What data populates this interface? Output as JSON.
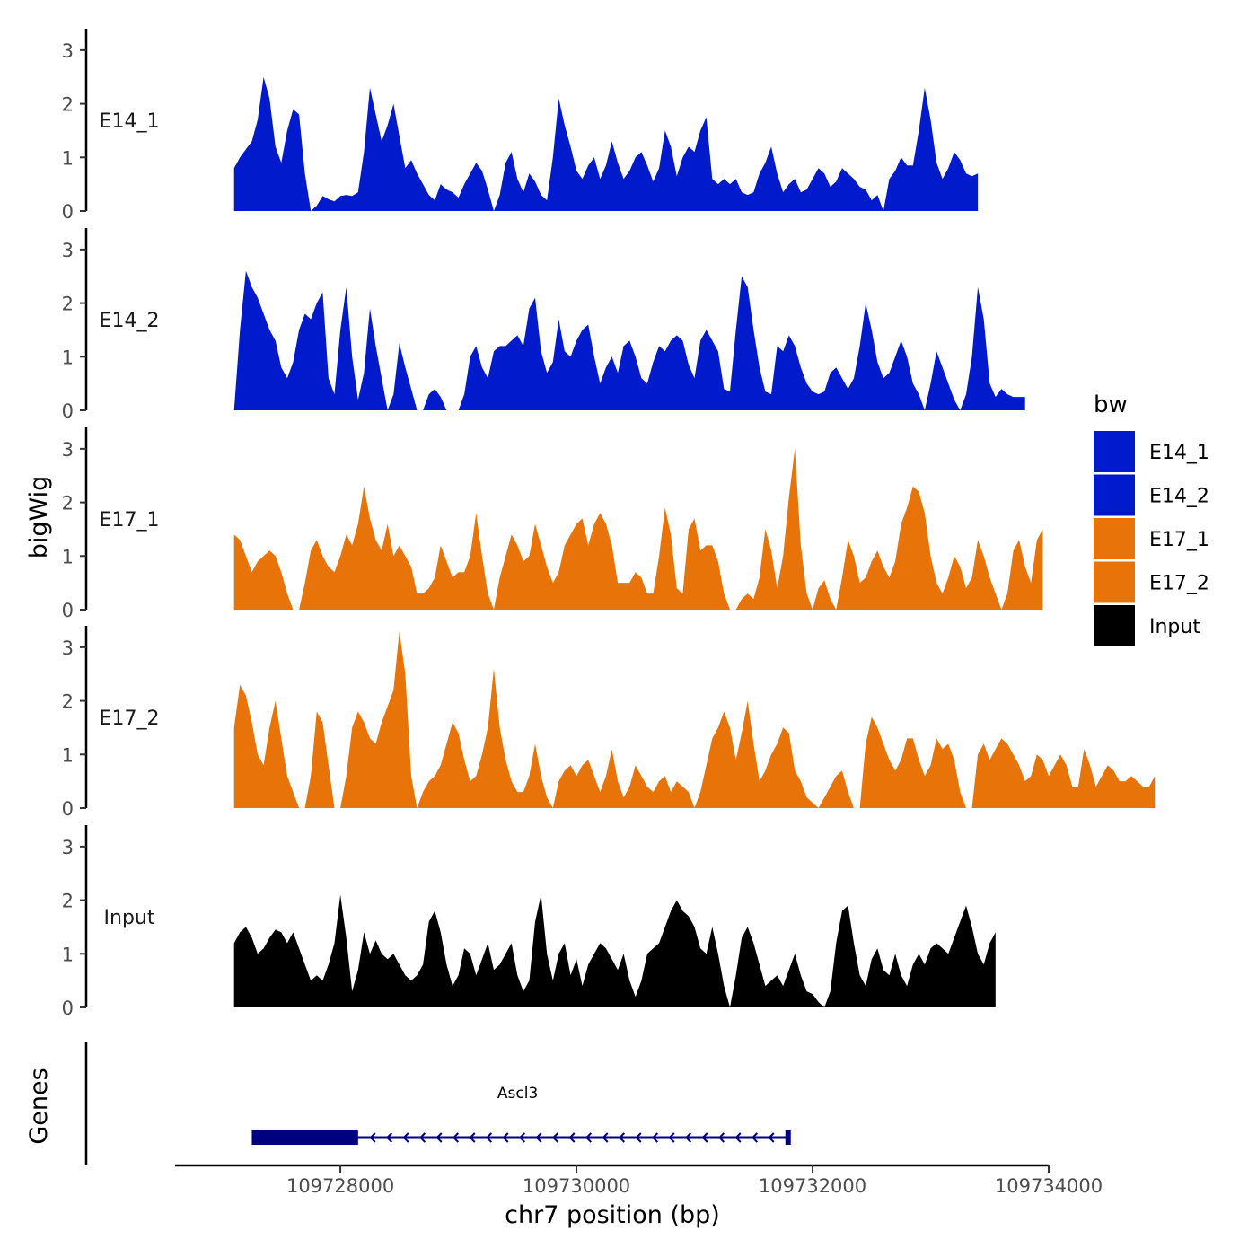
{
  "chart_data": {
    "type": "area",
    "y_axis_title": "bigWig",
    "x_axis_title": "chr7 position (bp)",
    "genes_axis_title": "Genes",
    "xlim": [
      109726600,
      109734000
    ],
    "x_ticks": [
      109728000,
      109730000,
      109732000,
      109734000
    ],
    "x_tick_labels": [
      "109728000",
      "109730000",
      "109732000",
      "109734000"
    ],
    "ylim": [
      0,
      3.4
    ],
    "y_ticks": [
      0,
      1,
      2,
      3
    ],
    "y_tick_labels": [
      "0",
      "1",
      "2",
      "3"
    ],
    "x_step": 50,
    "x_start": 109727100,
    "legend": {
      "title": "bw",
      "position": "right",
      "entries": [
        {
          "name": "E14_1",
          "color": "#001acc"
        },
        {
          "name": "E14_2",
          "color": "#001acc"
        },
        {
          "name": "E17_1",
          "color": "#e87409"
        },
        {
          "name": "E17_2",
          "color": "#e87409"
        },
        {
          "name": "Input",
          "color": "#000000"
        }
      ]
    },
    "tracks": [
      {
        "name": "E14_1",
        "color": "#001acc",
        "values": [
          0.8,
          1.0,
          1.15,
          1.3,
          1.7,
          2.5,
          2.1,
          1.2,
          0.9,
          1.5,
          1.9,
          1.8,
          0.7,
          0.0,
          0.1,
          0.28,
          0.22,
          0.18,
          0.28,
          0.3,
          0.28,
          0.35,
          1.1,
          2.3,
          1.8,
          1.3,
          1.6,
          2.0,
          1.4,
          0.8,
          0.95,
          0.7,
          0.5,
          0.3,
          0.2,
          0.5,
          0.4,
          0.35,
          0.25,
          0.5,
          0.7,
          0.9,
          0.75,
          0.4,
          0.0,
          0.3,
          0.9,
          1.1,
          0.6,
          0.35,
          0.7,
          0.55,
          0.3,
          0.2,
          1.0,
          2.1,
          1.6,
          1.2,
          0.75,
          0.6,
          0.85,
          1.0,
          0.6,
          0.85,
          1.3,
          0.9,
          0.6,
          0.75,
          1.0,
          1.1,
          0.85,
          0.55,
          0.8,
          1.5,
          1.2,
          0.65,
          1.0,
          1.2,
          1.1,
          1.5,
          1.75,
          0.6,
          0.5,
          0.6,
          0.5,
          0.6,
          0.35,
          0.3,
          0.35,
          0.7,
          0.9,
          1.2,
          0.7,
          0.35,
          0.5,
          0.6,
          0.35,
          0.4,
          0.6,
          0.8,
          0.7,
          0.45,
          0.55,
          0.8,
          0.7,
          0.6,
          0.45,
          0.4,
          0.2,
          0.3,
          0.0,
          0.6,
          0.75,
          1.0,
          0.85,
          0.85,
          1.5,
          2.3,
          1.7,
          0.9,
          0.6,
          0.8,
          1.1,
          0.95,
          0.7,
          0.65,
          0.7
        ]
      },
      {
        "name": "E14_2",
        "color": "#001acc",
        "values": [
          0.0,
          1.5,
          2.6,
          2.3,
          2.1,
          1.8,
          1.5,
          1.3,
          0.8,
          0.6,
          0.9,
          1.5,
          1.8,
          1.7,
          2.0,
          2.2,
          0.6,
          0.3,
          1.5,
          2.3,
          1.0,
          0.2,
          0.7,
          1.9,
          1.2,
          0.6,
          0.0,
          0.3,
          1.25,
          0.8,
          0.4,
          0.0,
          0.0,
          0.3,
          0.4,
          0.25,
          0.0,
          0.0,
          0.0,
          0.3,
          1.0,
          1.2,
          0.8,
          0.6,
          1.1,
          1.2,
          1.2,
          1.3,
          1.4,
          1.2,
          1.9,
          2.1,
          1.1,
          0.7,
          0.9,
          1.7,
          1.1,
          1.0,
          1.3,
          1.5,
          1.6,
          1.0,
          0.5,
          0.8,
          1.0,
          0.7,
          1.2,
          1.3,
          1.0,
          0.6,
          0.5,
          0.9,
          1.2,
          1.1,
          1.3,
          1.4,
          1.3,
          0.85,
          0.6,
          1.3,
          1.5,
          1.3,
          1.1,
          0.4,
          0.35,
          1.5,
          2.5,
          2.3,
          1.5,
          0.8,
          0.35,
          0.3,
          1.2,
          1.1,
          1.4,
          1.2,
          0.8,
          0.5,
          0.35,
          0.3,
          0.35,
          0.7,
          0.8,
          0.6,
          0.4,
          0.6,
          1.2,
          2.0,
          1.5,
          0.9,
          0.6,
          0.7,
          1.0,
          1.3,
          1.0,
          0.5,
          0.3,
          0.0,
          0.5,
          1.1,
          0.8,
          0.5,
          0.2,
          0.0,
          0.3,
          1.0,
          2.3,
          1.7,
          0.5,
          0.25,
          0.4,
          0.3,
          0.25,
          0.25,
          0.25
        ]
      },
      {
        "name": "E17_1",
        "color": "#e87409",
        "values": [
          1.4,
          1.3,
          1.0,
          0.7,
          0.9,
          1.0,
          1.1,
          1.0,
          0.7,
          0.3,
          0.0,
          0.0,
          0.5,
          1.1,
          1.3,
          1.0,
          0.8,
          0.7,
          1.0,
          1.4,
          1.2,
          1.6,
          2.3,
          1.7,
          1.3,
          1.1,
          1.6,
          1.0,
          1.2,
          1.0,
          0.8,
          0.3,
          0.3,
          0.4,
          0.6,
          1.2,
          0.9,
          0.6,
          0.7,
          0.7,
          1.0,
          1.8,
          1.0,
          0.3,
          0.0,
          0.6,
          1.0,
          1.4,
          1.2,
          0.9,
          1.0,
          1.6,
          1.2,
          0.8,
          0.5,
          0.7,
          1.2,
          1.4,
          1.6,
          1.7,
          1.2,
          1.6,
          1.8,
          1.6,
          1.2,
          0.5,
          0.5,
          0.5,
          0.7,
          0.6,
          0.3,
          0.3,
          1.0,
          1.9,
          1.4,
          0.4,
          0.3,
          1.5,
          1.7,
          1.1,
          1.2,
          1.2,
          0.9,
          0.3,
          0.0,
          0.0,
          0.2,
          0.3,
          0.2,
          0.6,
          1.5,
          1.1,
          0.4,
          1.0,
          2.1,
          3.0,
          1.2,
          0.3,
          0.0,
          0.4,
          0.55,
          0.2,
          0.0,
          0.6,
          1.3,
          1.0,
          0.5,
          0.6,
          0.9,
          1.1,
          0.8,
          0.6,
          0.9,
          1.6,
          1.9,
          2.3,
          2.2,
          1.8,
          1.0,
          0.5,
          0.3,
          0.6,
          1.0,
          0.8,
          0.4,
          0.6,
          1.3,
          1.0,
          0.6,
          0.3,
          0.0,
          0.3,
          1.1,
          1.3,
          0.8,
          0.5,
          1.3,
          1.5
        ]
      },
      {
        "name": "E17_2",
        "color": "#e87409",
        "values": [
          1.5,
          2.3,
          2.1,
          1.6,
          1.0,
          0.8,
          1.5,
          2.0,
          1.3,
          0.6,
          0.3,
          0.0,
          0.0,
          0.6,
          1.8,
          1.6,
          0.8,
          0.0,
          0.0,
          0.6,
          1.5,
          1.8,
          1.6,
          1.3,
          1.2,
          1.6,
          1.9,
          2.2,
          3.3,
          2.5,
          0.6,
          0.0,
          0.3,
          0.5,
          0.6,
          0.8,
          1.2,
          1.6,
          1.4,
          0.9,
          0.5,
          0.6,
          1.0,
          1.5,
          2.6,
          1.5,
          0.9,
          0.5,
          0.3,
          0.3,
          0.6,
          1.2,
          0.6,
          0.2,
          0.0,
          0.5,
          0.7,
          0.8,
          0.6,
          0.8,
          0.9,
          0.6,
          0.3,
          0.6,
          1.1,
          0.5,
          0.2,
          0.4,
          0.8,
          0.6,
          0.4,
          0.3,
          0.5,
          0.6,
          0.3,
          0.5,
          0.4,
          0.3,
          0.0,
          0.3,
          0.8,
          1.3,
          1.5,
          1.8,
          1.5,
          0.9,
          1.4,
          2.0,
          1.2,
          0.5,
          0.7,
          1.0,
          1.2,
          1.5,
          1.4,
          0.7,
          0.5,
          0.2,
          0.1,
          0.0,
          0.2,
          0.4,
          0.6,
          0.7,
          0.3,
          0.0,
          0.0,
          1.2,
          1.7,
          1.5,
          1.2,
          0.9,
          0.7,
          0.9,
          1.3,
          1.3,
          0.9,
          0.6,
          0.8,
          1.3,
          1.1,
          1.2,
          0.9,
          0.3,
          0.0,
          0.0,
          1.0,
          1.2,
          0.9,
          1.1,
          1.3,
          1.2,
          1.0,
          0.8,
          0.5,
          0.6,
          1.0,
          0.9,
          0.6,
          0.8,
          1.0,
          0.8,
          0.4,
          0.4,
          1.1,
          0.8,
          0.4,
          0.6,
          0.8,
          0.7,
          0.5,
          0.5,
          0.6,
          0.5,
          0.4,
          0.4,
          0.6
        ]
      },
      {
        "name": "Input",
        "color": "#000000",
        "values": [
          1.2,
          1.4,
          1.5,
          1.3,
          1.0,
          1.1,
          1.3,
          1.45,
          1.4,
          1.2,
          1.4,
          1.1,
          0.8,
          0.5,
          0.6,
          0.5,
          0.8,
          1.2,
          2.1,
          1.3,
          0.3,
          0.7,
          1.4,
          1.0,
          1.25,
          1.0,
          0.9,
          1.0,
          0.8,
          0.6,
          0.5,
          0.6,
          0.8,
          1.6,
          1.8,
          1.4,
          0.8,
          0.4,
          0.6,
          1.1,
          1.0,
          0.6,
          0.9,
          1.2,
          0.7,
          0.8,
          1.0,
          1.2,
          0.6,
          0.3,
          0.5,
          1.6,
          2.1,
          1.0,
          0.5,
          1.0,
          1.2,
          0.6,
          0.9,
          0.4,
          0.8,
          1.0,
          1.2,
          1.1,
          0.9,
          0.7,
          1.0,
          0.5,
          0.2,
          0.5,
          1.0,
          1.1,
          1.2,
          1.5,
          1.8,
          2.0,
          1.8,
          1.7,
          1.5,
          1.1,
          1.0,
          1.5,
          1.0,
          0.4,
          0.0,
          0.6,
          1.3,
          1.5,
          1.2,
          0.8,
          0.4,
          0.5,
          0.6,
          0.4,
          0.7,
          1.0,
          0.6,
          0.3,
          0.25,
          0.1,
          0.0,
          0.3,
          1.2,
          1.8,
          1.9,
          1.2,
          0.6,
          0.4,
          0.9,
          1.1,
          0.7,
          0.6,
          1.0,
          0.6,
          0.4,
          0.8,
          1.0,
          0.8,
          1.1,
          1.2,
          1.1,
          1.0,
          1.3,
          1.6,
          1.9,
          1.5,
          1.0,
          0.8,
          1.2,
          1.4
        ]
      }
    ],
    "genes": [
      {
        "name": "Ascl3",
        "strand": "-",
        "start": 109727250,
        "end": 109731800,
        "thick_end": 109728150
      }
    ]
  }
}
